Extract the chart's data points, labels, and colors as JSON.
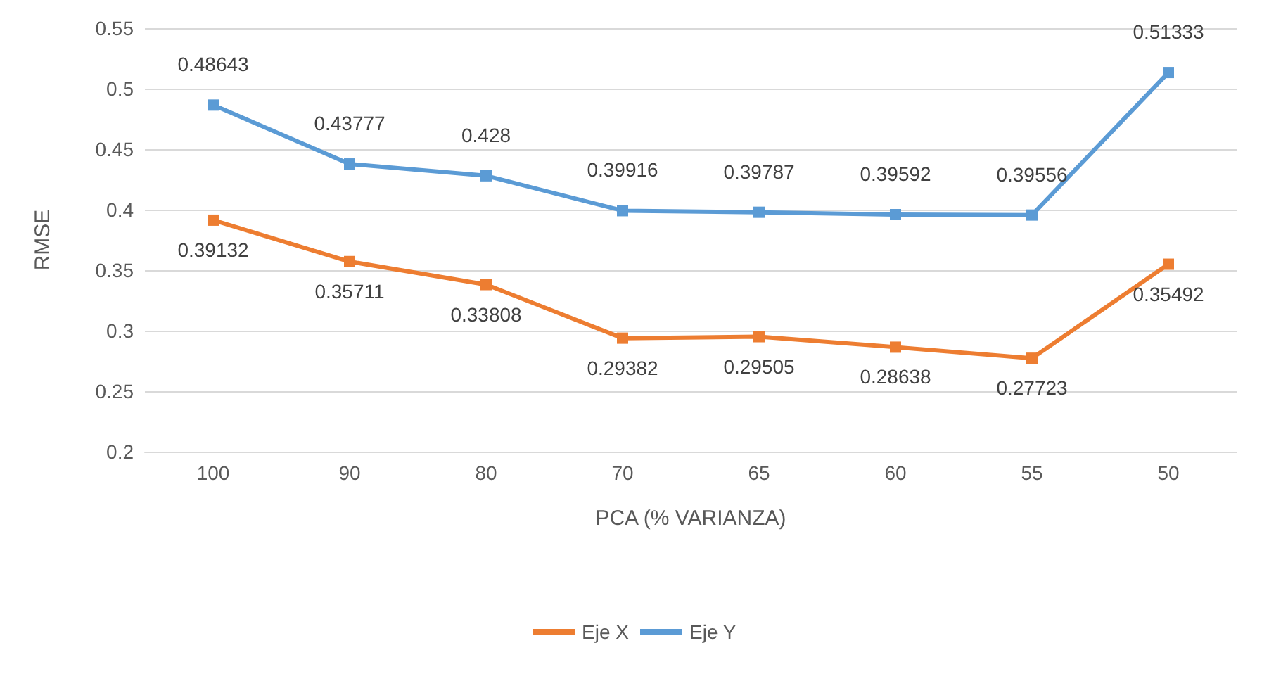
{
  "chart_data": {
    "type": "line",
    "xlabel": "PCA (% VARIANZA)",
    "ylabel": "RMSE",
    "categories": [
      "100",
      "90",
      "80",
      "70",
      "65",
      "60",
      "55",
      "50"
    ],
    "series": [
      {
        "name": "Eje X",
        "color": "#ed7d31",
        "values": [
          0.39132,
          0.35711,
          0.33808,
          0.29382,
          0.29505,
          0.28638,
          0.27723,
          0.35492
        ]
      },
      {
        "name": "Eje Y",
        "color": "#5b9bd5",
        "values": [
          0.48643,
          0.43777,
          0.428,
          0.39916,
          0.39787,
          0.39592,
          0.39556,
          0.51333
        ]
      }
    ],
    "ylim": [
      0.2,
      0.55
    ],
    "yticks": [
      0.2,
      0.25,
      0.3,
      0.35,
      0.4,
      0.45,
      0.5,
      0.55
    ],
    "grid": "y",
    "legend": "bottom",
    "marker": "square",
    "line_style": "solid",
    "data_labels": true
  }
}
